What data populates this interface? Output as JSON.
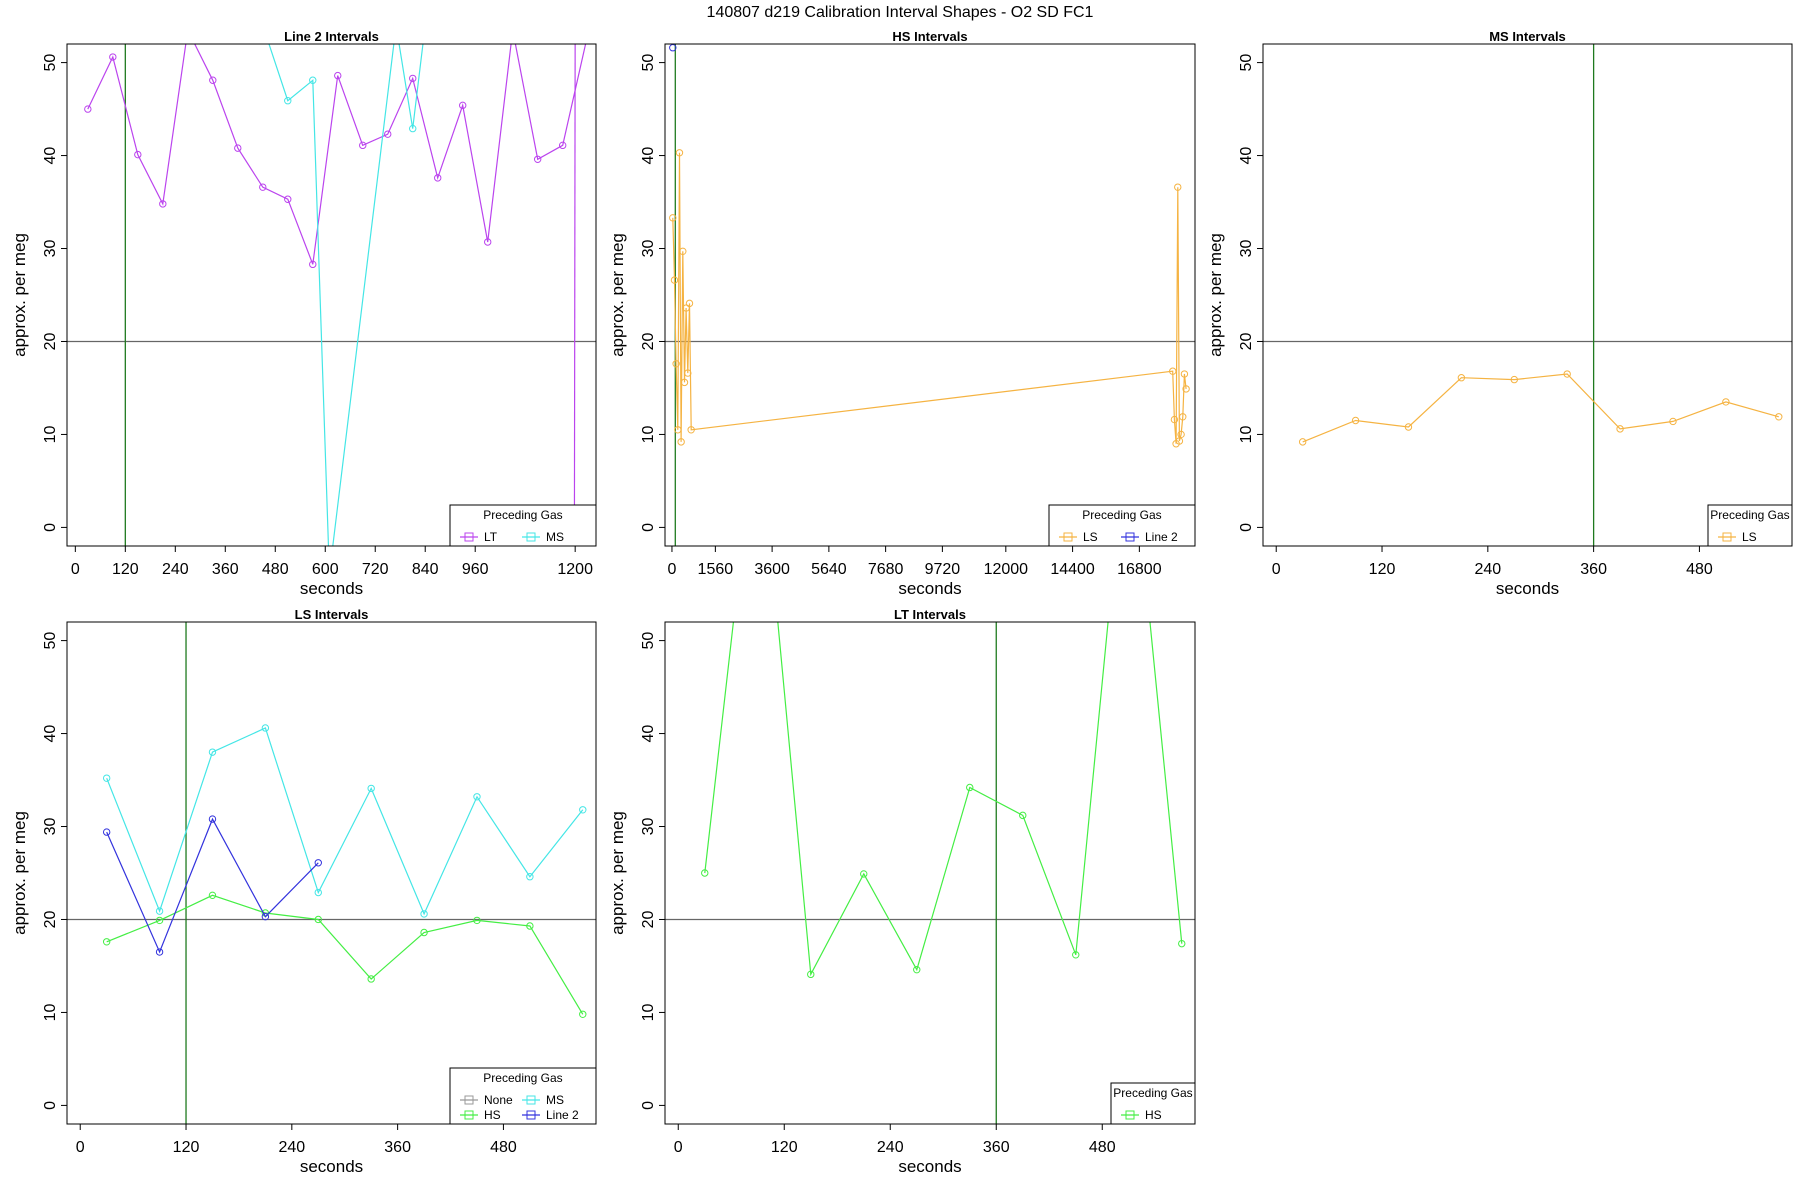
{
  "figure": {
    "title": "140807   d219   Calibration Interval Shapes - O2 SD FC1"
  },
  "colors": {
    "None": "#999999",
    "HS": "#44ee44",
    "MS": "#44e6e6",
    "LS": "#f5b342",
    "LT": "#bb44ee",
    "Line 2": "#3333dd",
    "vline": "#1f7a1f",
    "hline": "#666666"
  },
  "chart_data": [
    {
      "type": "line",
      "title": "Line 2 Intervals",
      "xlabel": "seconds",
      "ylabel": "approx. per meg",
      "xlim": [
        -20,
        1250
      ],
      "ylim": [
        -2,
        52
      ],
      "xticks": [
        0,
        120,
        240,
        360,
        480,
        600,
        720,
        840,
        960,
        1200
      ],
      "yticks": [
        0,
        10,
        20,
        30,
        40,
        50
      ],
      "hline": 20,
      "vlines": [
        120
      ],
      "legend_title": "Preceding Gas",
      "legend": [
        "LT",
        "MS"
      ],
      "legend_cols": 2,
      "series": [
        {
          "name": "LT",
          "x": [
            30,
            90,
            150,
            210,
            270,
            330,
            390,
            450,
            510,
            570,
            630,
            690,
            750,
            810,
            870,
            930,
            990,
            1050,
            1110,
            1170,
            1230
          ],
          "y": [
            45,
            50.6,
            40.1,
            34.8,
            53.5,
            48.1,
            40.8,
            36.6,
            35.3,
            28.3,
            48.6,
            41.1,
            42.3,
            48.3,
            37.6,
            45.4,
            30.7,
            53.5,
            39.6,
            41.1,
            53
          ]
        },
        {
          "name": "MS",
          "x": [
            450,
            510,
            570,
            610,
            770,
            810,
            840
          ],
          "y": [
            54,
            45.9,
            48.1,
            -5,
            54,
            42.9,
            54
          ]
        }
      ],
      "extra_segments": [
        {
          "series": "LT",
          "x": [
            1198,
            1200
          ],
          "y": [
            -5,
            54
          ]
        }
      ]
    },
    {
      "type": "line",
      "title": "HS Intervals",
      "xlabel": "seconds",
      "ylabel": "approx. per meg",
      "xlim": [
        -250,
        18800
      ],
      "ylim": [
        -2,
        52
      ],
      "xticks": [
        0,
        1560,
        3600,
        5640,
        7680,
        9720,
        12000,
        14400,
        16800
      ],
      "yticks": [
        0,
        10,
        20,
        30,
        40,
        50
      ],
      "hline": 20,
      "vlines": [
        120
      ],
      "legend_title": "Preceding Gas",
      "legend": [
        "LS",
        "Line 2"
      ],
      "legend_cols": 2,
      "series": [
        {
          "name": "LS",
          "x": [
            30,
            90,
            150,
            210,
            270,
            330,
            390,
            450,
            510,
            570,
            630,
            690,
            18000,
            18060,
            18120,
            18180,
            18240,
            18300,
            18360,
            18420,
            18480
          ],
          "y": [
            33.3,
            26.6,
            17.6,
            10.5,
            40.3,
            9.2,
            29.7,
            15.6,
            23.6,
            16.6,
            24.1,
            10.5,
            16.8,
            11.6,
            9,
            36.6,
            9.3,
            10,
            11.9,
            16.5,
            14.9
          ]
        },
        {
          "name": "Line 2",
          "x": [
            30
          ],
          "y": [
            51.6
          ]
        }
      ]
    },
    {
      "type": "line",
      "title": "MS Intervals",
      "xlabel": "seconds",
      "ylabel": "approx. per meg",
      "xlim": [
        -15,
        585
      ],
      "ylim": [
        -2,
        52
      ],
      "xticks": [
        0,
        120,
        240,
        360,
        480
      ],
      "yticks": [
        0,
        10,
        20,
        30,
        40,
        50
      ],
      "hline": 20,
      "vlines": [
        360
      ],
      "legend_title": "Preceding Gas",
      "legend": [
        "LS"
      ],
      "legend_cols": 1,
      "series": [
        {
          "name": "LS",
          "x": [
            30,
            90,
            150,
            210,
            270,
            330,
            390,
            450,
            510,
            570
          ],
          "y": [
            9.2,
            11.5,
            10.8,
            16.1,
            15.9,
            16.5,
            10.6,
            11.4,
            13.5,
            11.9
          ]
        }
      ]
    },
    {
      "type": "line",
      "title": "LS Intervals",
      "xlabel": "seconds",
      "ylabel": "approx. per meg",
      "xlim": [
        -15,
        585
      ],
      "ylim": [
        -2,
        52
      ],
      "xticks": [
        0,
        120,
        240,
        360,
        480
      ],
      "yticks": [
        0,
        10,
        20,
        30,
        40,
        50
      ],
      "hline": 20,
      "vlines": [
        120
      ],
      "legend_title": "Preceding Gas",
      "legend": [
        "None",
        "MS",
        "HS",
        "Line 2"
      ],
      "legend_cols": 2,
      "series": [
        {
          "name": "MS",
          "x": [
            30,
            90,
            150,
            210,
            270,
            330,
            390,
            450,
            510,
            570
          ],
          "y": [
            35.2,
            20.9,
            38,
            40.6,
            22.9,
            34.1,
            20.6,
            33.2,
            24.6,
            31.8
          ]
        },
        {
          "name": "HS",
          "x": [
            30,
            90,
            150,
            210,
            270,
            330,
            390,
            450,
            510,
            570
          ],
          "y": [
            17.6,
            19.9,
            22.6,
            20.7,
            20,
            13.6,
            18.6,
            19.9,
            19.3,
            9.8
          ]
        },
        {
          "name": "Line 2",
          "x": [
            30,
            90,
            150,
            210,
            270
          ],
          "y": [
            29.4,
            16.5,
            30.8,
            20.3,
            26.1
          ]
        }
      ]
    },
    {
      "type": "line",
      "title": "LT Intervals",
      "xlabel": "seconds",
      "ylabel": "approx. per meg",
      "xlim": [
        -15,
        585
      ],
      "ylim": [
        -2,
        52
      ],
      "xticks": [
        0,
        120,
        240,
        360,
        480
      ],
      "yticks": [
        0,
        10,
        20,
        30,
        40,
        50
      ],
      "hline": 20,
      "vlines": [
        360
      ],
      "legend_title": "Preceding Gas",
      "legend": [
        "HS"
      ],
      "legend_cols": 1,
      "series": [
        {
          "name": "HS",
          "x": [
            30,
            90,
            150,
            210,
            270,
            330,
            390,
            450,
            510,
            570
          ],
          "y": [
            25,
            75,
            14.1,
            24.9,
            14.6,
            34.2,
            31.2,
            16.2,
            75,
            17.4
          ]
        }
      ]
    }
  ]
}
